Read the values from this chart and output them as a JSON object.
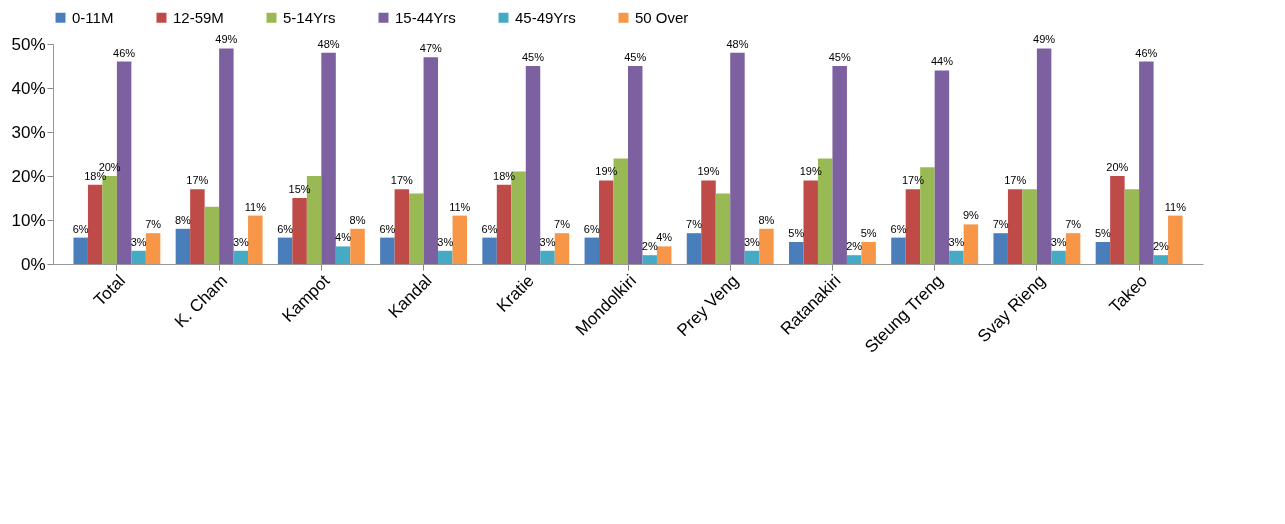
{
  "chart_data": {
    "type": "bar",
    "categories": [
      "Total",
      "K. Cham",
      "Kampot",
      "Kandal",
      "Kratie",
      "Mondolkiri",
      "Prey Veng",
      "Ratanakiri",
      "Steung Treng",
      "Svay Rieng",
      "Takeo"
    ],
    "series": [
      {
        "name": "0-11M",
        "color": "#4a7ebb",
        "values": [
          6,
          8,
          6,
          6,
          6,
          6,
          7,
          5,
          6,
          7,
          5
        ],
        "value_labels": [
          "6%",
          "8%",
          "6%",
          "6%",
          "6%",
          "6%",
          "7%",
          "5%",
          "6%",
          "7%",
          "5%"
        ]
      },
      {
        "name": "12-59M",
        "color": "#be4b48",
        "values": [
          18,
          17,
          15,
          17,
          18,
          19,
          19,
          19,
          17,
          17,
          20
        ],
        "value_labels": [
          "18%",
          "17%",
          "15%",
          "17%",
          "18%",
          "19%",
          "19%",
          "19%",
          "17%",
          "17%",
          "20%"
        ]
      },
      {
        "name": "5-14Yrs",
        "color": "#98b954",
        "values": [
          20,
          13,
          20,
          16,
          21,
          24,
          16,
          24,
          22,
          17,
          17
        ],
        "value_labels": [
          "20%",
          null,
          null,
          null,
          null,
          null,
          null,
          null,
          null,
          null,
          null
        ]
      },
      {
        "name": "15-44Yrs",
        "color": "#7d60a0",
        "values": [
          46,
          49,
          48,
          47,
          45,
          45,
          48,
          45,
          44,
          49,
          46
        ],
        "value_labels": [
          "46%",
          "49%",
          "48%",
          "47%",
          "45%",
          "45%",
          "48%",
          "45%",
          "44%",
          "49%",
          "46%"
        ]
      },
      {
        "name": "45-49Yrs",
        "color": "#46aac5",
        "values": [
          3,
          3,
          4,
          3,
          3,
          2,
          3,
          2,
          3,
          3,
          2
        ],
        "value_labels": [
          "3%",
          "3%",
          "4%",
          "3%",
          "3%",
          "2%",
          "3%",
          "2%",
          "3%",
          "3%",
          "2%"
        ]
      },
      {
        "name": "50 Over",
        "color": "#f79646",
        "values": [
          7,
          11,
          8,
          11,
          7,
          4,
          8,
          5,
          9,
          7,
          11
        ],
        "value_labels": [
          "7%",
          "11%",
          "8%",
          "11%",
          "7%",
          "4%",
          "8%",
          "5%",
          "9%",
          "7%",
          "11%"
        ]
      }
    ],
    "ylim": [
      0,
      50
    ],
    "yticks": [
      {
        "value": 0,
        "label": "0%"
      },
      {
        "value": 10,
        "label": "10%"
      },
      {
        "value": 20,
        "label": "20%"
      },
      {
        "value": 30,
        "label": "30%"
      },
      {
        "value": 40,
        "label": "40%"
      },
      {
        "value": 50,
        "label": "50%"
      }
    ],
    "grid": false,
    "legend": "top"
  }
}
